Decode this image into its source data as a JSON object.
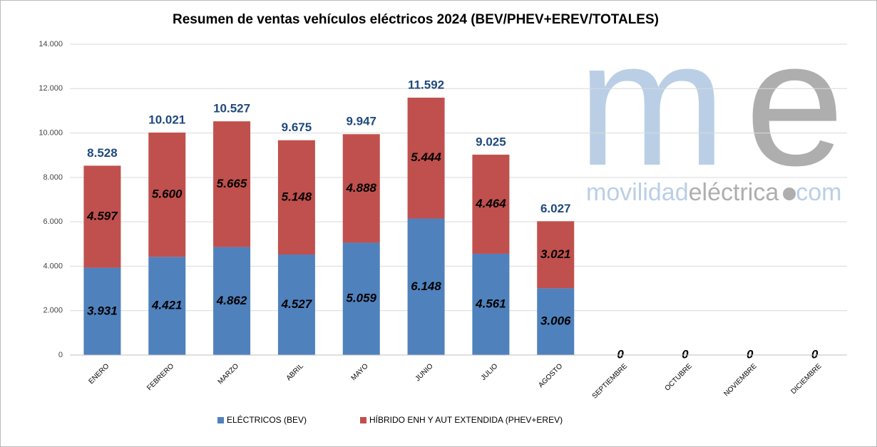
{
  "chart_data": {
    "type": "stacked_bar",
    "title": "Resumen de ventas vehículos eléctricos 2024 (BEV/PHEV+EREV/TOTALES)",
    "categories": [
      "ENERO",
      "FEBRERO",
      "MARZO",
      "ABRIL",
      "MAYO",
      "JUNIO",
      "JULIO",
      "AGOSTO",
      "SEPTIEMBRE",
      "OCTUBRE",
      "NOVIEMBRE",
      "DICIEMBRE"
    ],
    "series": [
      {
        "name": "ELÉCTRICOS (BEV)",
        "color": "#4f81bd",
        "values": [
          3931,
          4421,
          4862,
          4527,
          5059,
          6148,
          4561,
          3006,
          0,
          0,
          0,
          0
        ],
        "value_labels": [
          "3.931",
          "4.421",
          "4.862",
          "4.527",
          "5.059",
          "6.148",
          "4.561",
          "3.006",
          "0",
          "0",
          "0",
          "0"
        ]
      },
      {
        "name": "HÍBRIDO ENH Y AUT EXTENDIDA (PHEV+EREV)",
        "color": "#c0504d",
        "values": [
          4597,
          5600,
          5665,
          5148,
          4888,
          5444,
          4464,
          3021,
          0,
          0,
          0,
          0
        ],
        "value_labels": [
          "4.597",
          "5.600",
          "5.665",
          "5.148",
          "4.888",
          "5.444",
          "4.464",
          "3.021",
          null,
          null,
          null,
          null
        ]
      }
    ],
    "totals": {
      "values": [
        8528,
        10021,
        10527,
        9675,
        9947,
        11592,
        9025,
        6027,
        null,
        null,
        null,
        null
      ],
      "value_labels": [
        "8.528",
        "10.021",
        "10.527",
        "9.675",
        "9.947",
        "11.592",
        "9.025",
        "6.027",
        null,
        null,
        null,
        null
      ]
    },
    "ylim": [
      0,
      14000
    ],
    "yticks": [
      0,
      {
        "value": 2000,
        "label": "2.000"
      },
      {
        "value": 4000,
        "label": "4.000"
      },
      {
        "value": 6000,
        "label": "6.000"
      },
      {
        "value": 8000,
        "label": "8.000"
      },
      {
        "value": 10000,
        "label": "10.000"
      },
      {
        "value": 12000,
        "label": "12.000"
      },
      {
        "value": 14000,
        "label": "14.000"
      }
    ],
    "grid": true,
    "legend": "bottom",
    "watermark": {
      "logo": [
        "m",
        "e"
      ],
      "text": [
        "movilidad",
        "eléctrica",
        "com"
      ]
    }
  }
}
